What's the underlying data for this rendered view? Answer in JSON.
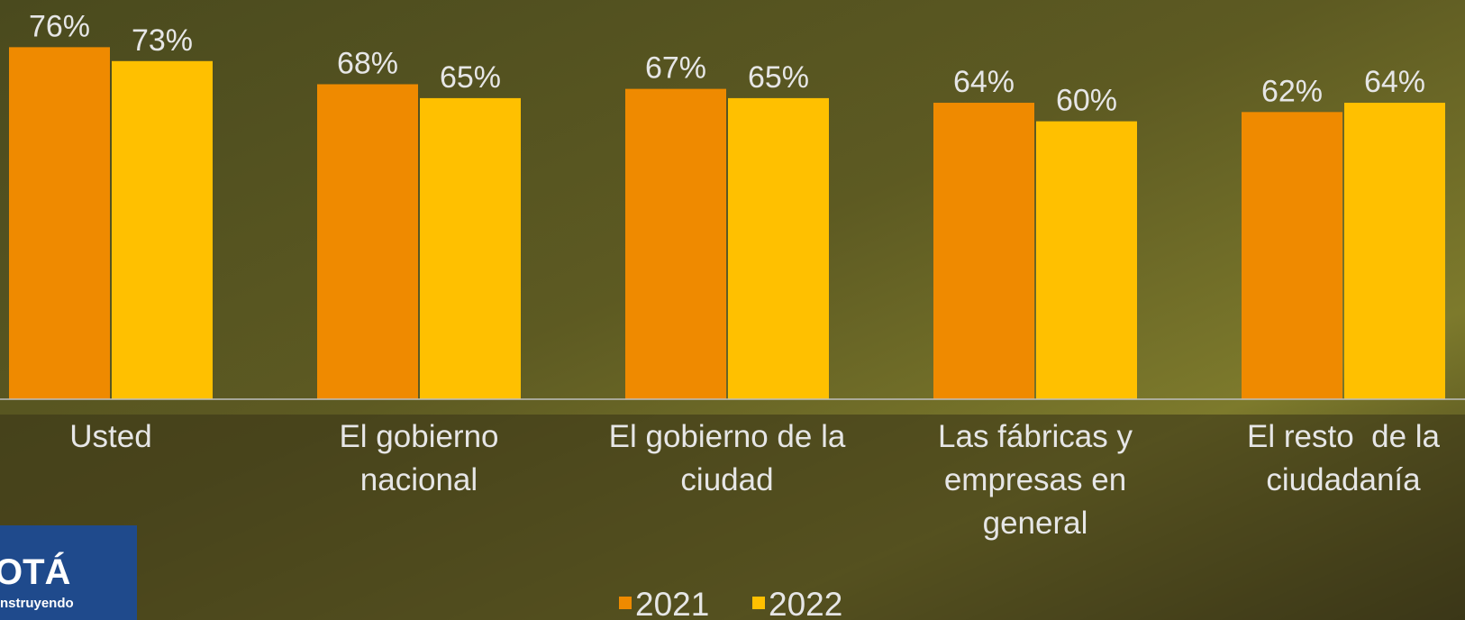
{
  "chart_data": {
    "type": "bar",
    "categories": [
      [
        "Usted"
      ],
      [
        "El gobierno",
        "nacional"
      ],
      [
        "El gobierno de la",
        "ciudad"
      ],
      [
        "Las fábricas y",
        "empresas en",
        "general"
      ],
      [
        "El resto  de la",
        "ciudadanía"
      ]
    ],
    "series": [
      {
        "name": "2021",
        "color": "#ef8a00",
        "values": [
          76,
          68,
          67,
          64,
          62
        ],
        "value_labels": [
          "76%",
          "68%",
          "67%",
          "64%",
          "62%"
        ]
      },
      {
        "name": "2022",
        "color": "#ffc000",
        "values": [
          73,
          65,
          65,
          60,
          64
        ],
        "value_labels": [
          "73%",
          "65%",
          "65%",
          "60%",
          "64%"
        ]
      }
    ],
    "legend": "bottom"
  },
  "logo": {
    "title": "OTÁ",
    "subtitle": "nstruyendo"
  }
}
